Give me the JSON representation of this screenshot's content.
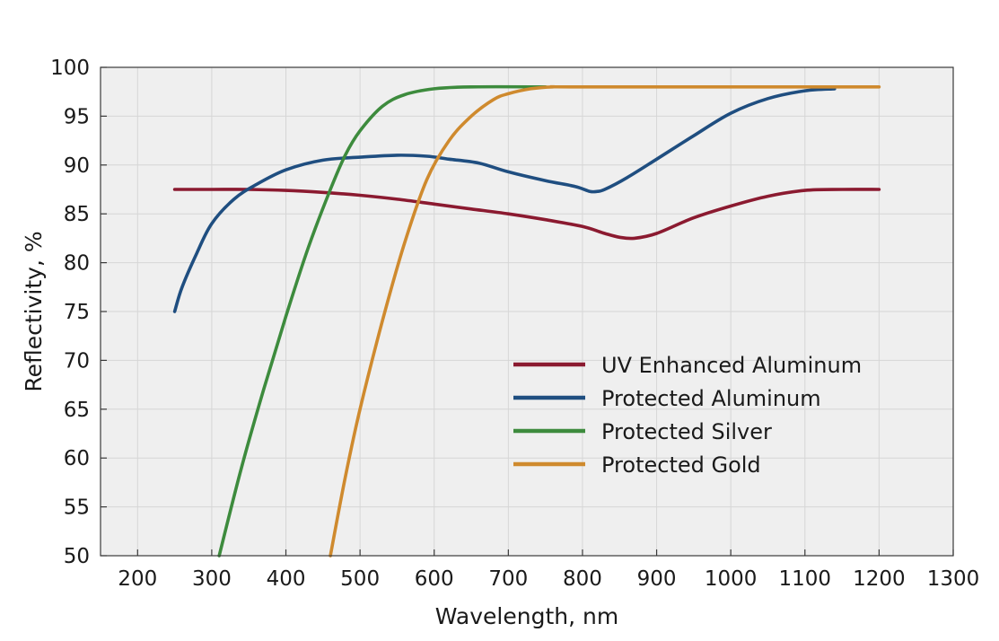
{
  "chart_data": {
    "type": "line",
    "title": "",
    "xlabel": "Wavelength, nm",
    "ylabel": "Reflectivity, %",
    "xlim": [
      150,
      1300
    ],
    "ylim": [
      50,
      100
    ],
    "xticks": [
      200,
      300,
      400,
      500,
      600,
      700,
      800,
      900,
      1000,
      1100,
      1200,
      1300
    ],
    "yticks": [
      50,
      55,
      60,
      65,
      70,
      75,
      80,
      85,
      90,
      95,
      100
    ],
    "grid": true,
    "legend_position": "lower-right",
    "plot_background": "#efefef",
    "series": [
      {
        "name": "UV Enhanced Aluminum",
        "color": "#8b1a30",
        "x": [
          250,
          300,
          350,
          400,
          450,
          500,
          550,
          600,
          650,
          700,
          750,
          800,
          830,
          850,
          870,
          900,
          950,
          1000,
          1050,
          1100,
          1150,
          1200
        ],
        "y": [
          87.5,
          87.5,
          87.5,
          87.4,
          87.2,
          86.9,
          86.5,
          86.0,
          85.5,
          85.0,
          84.4,
          83.7,
          83.0,
          82.6,
          82.5,
          83.0,
          84.6,
          85.8,
          86.8,
          87.4,
          87.5,
          87.5
        ]
      },
      {
        "name": "Protected Aluminum",
        "color": "#1f4e80",
        "x": [
          250,
          260,
          280,
          300,
          330,
          360,
          400,
          450,
          500,
          550,
          590,
          620,
          660,
          700,
          750,
          790,
          810,
          820,
          830,
          860,
          900,
          950,
          1000,
          1050,
          1100,
          1140
        ],
        "y": [
          75.0,
          77.5,
          81.0,
          84.0,
          86.5,
          88.0,
          89.5,
          90.5,
          90.8,
          91.0,
          90.9,
          90.6,
          90.2,
          89.3,
          88.4,
          87.8,
          87.3,
          87.3,
          87.5,
          88.7,
          90.6,
          93.0,
          95.3,
          96.8,
          97.6,
          97.8
        ]
      },
      {
        "name": "Protected Silver",
        "color": "#3d8b3d",
        "x": [
          310,
          340,
          370,
          400,
          430,
          460,
          480,
          500,
          530,
          560,
          600,
          650,
          750
        ],
        "y": [
          50,
          59,
          67,
          74.5,
          81.5,
          87.5,
          91.0,
          93.5,
          96.0,
          97.2,
          97.8,
          98.0,
          98.0
        ]
      },
      {
        "name": "Protected Gold",
        "color": "#cf8a2e",
        "x": [
          460,
          480,
          500,
          530,
          560,
          590,
          620,
          650,
          680,
          700,
          730,
          760,
          800,
          1200
        ],
        "y": [
          50,
          58,
          65,
          74,
          82,
          88.5,
          92.5,
          95.0,
          96.7,
          97.3,
          97.8,
          98.0,
          98.0,
          98.0
        ]
      }
    ]
  }
}
